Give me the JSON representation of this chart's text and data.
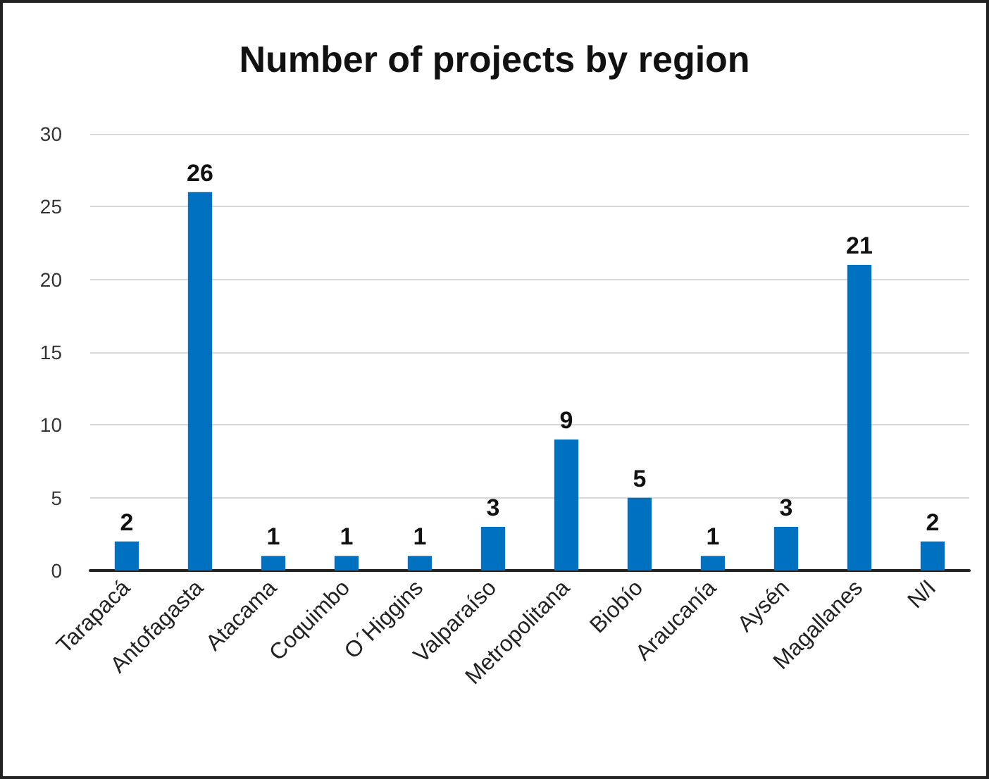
{
  "chart_data": {
    "type": "bar",
    "title": "Number of projects by region",
    "categories": [
      "Tarapacá",
      "Antofagasta",
      "Atacama",
      "Coquimbo",
      "O´Higgins",
      "Valparaíso",
      "Metropolitana",
      "Biobío",
      "Araucanía",
      "Aysén",
      "Magallanes",
      "N/I"
    ],
    "values": [
      2,
      26,
      1,
      1,
      1,
      3,
      9,
      5,
      1,
      3,
      21,
      2
    ],
    "color": "#0070c0",
    "ylim": [
      0,
      30
    ],
    "yticks": [
      0,
      5,
      10,
      15,
      20,
      25,
      30
    ],
    "grid": "y",
    "data_labels": true
  }
}
